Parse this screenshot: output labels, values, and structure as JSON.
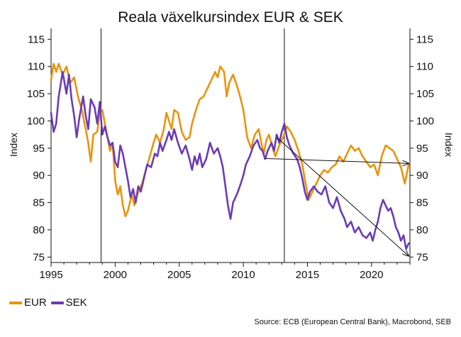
{
  "chart_data": {
    "type": "line",
    "title": "Reala växelkursindex EUR & SEK",
    "ylabel_left": "Index",
    "ylabel_right": "Index",
    "xlim": [
      1995,
      2023
    ],
    "ylim": [
      74,
      117
    ],
    "yticks": [
      75,
      80,
      85,
      90,
      95,
      100,
      105,
      110,
      115
    ],
    "xticks": [
      1995,
      2000,
      2005,
      2010,
      2015,
      2020
    ],
    "grid": false,
    "legend_position": "bottom-left",
    "vertical_lines": [
      1998.9,
      2013.2
    ],
    "trend_arrows": [
      {
        "from": [
          2012.6,
          97
        ],
        "to": [
          2022.9,
          75.2
        ]
      },
      {
        "from": [
          2011.7,
          93.1
        ],
        "to": [
          2022.9,
          92.2
        ]
      }
    ],
    "series": [
      {
        "name": "EUR",
        "color": "#E8940F",
        "points": [
          [
            1995.0,
            107.5
          ],
          [
            1995.2,
            110.5
          ],
          [
            1995.4,
            109.0
          ],
          [
            1995.6,
            110.5
          ],
          [
            1995.9,
            108.5
          ],
          [
            1996.2,
            110.0
          ],
          [
            1996.5,
            107.0
          ],
          [
            1996.8,
            108.0
          ],
          [
            1997.1,
            104.5
          ],
          [
            1997.4,
            102.0
          ],
          [
            1997.7,
            98.5
          ],
          [
            1997.9,
            96.0
          ],
          [
            1998.1,
            92.5
          ],
          [
            1998.3,
            97.5
          ],
          [
            1998.6,
            98.0
          ],
          [
            1998.8,
            101.5
          ],
          [
            1999.0,
            102.0
          ],
          [
            1999.2,
            99.5
          ],
          [
            1999.4,
            97.0
          ],
          [
            1999.6,
            94.5
          ],
          [
            1999.8,
            96.0
          ],
          [
            2000.0,
            89.0
          ],
          [
            2000.2,
            86.5
          ],
          [
            2000.4,
            88.0
          ],
          [
            2000.6,
            84.5
          ],
          [
            2000.8,
            82.5
          ],
          [
            2001.0,
            83.5
          ],
          [
            2001.3,
            86.5
          ],
          [
            2001.5,
            84.5
          ],
          [
            2001.8,
            87.0
          ],
          [
            2002.1,
            88.5
          ],
          [
            2002.4,
            91.0
          ],
          [
            2002.7,
            93.5
          ],
          [
            2003.0,
            96.0
          ],
          [
            2003.2,
            97.5
          ],
          [
            2003.5,
            96.0
          ],
          [
            2003.8,
            98.5
          ],
          [
            2004.0,
            101.5
          ],
          [
            2004.2,
            100.0
          ],
          [
            2004.4,
            98.5
          ],
          [
            2004.6,
            102.0
          ],
          [
            2004.9,
            101.5
          ],
          [
            2005.2,
            98.0
          ],
          [
            2005.5,
            96.5
          ],
          [
            2005.8,
            97.0
          ],
          [
            2006.0,
            99.5
          ],
          [
            2006.3,
            102.0
          ],
          [
            2006.6,
            104.0
          ],
          [
            2006.9,
            104.5
          ],
          [
            2007.2,
            106.0
          ],
          [
            2007.5,
            107.5
          ],
          [
            2007.8,
            109.0
          ],
          [
            2008.0,
            108.0
          ],
          [
            2008.2,
            110.0
          ],
          [
            2008.5,
            109.0
          ],
          [
            2008.7,
            104.5
          ],
          [
            2008.9,
            107.0
          ],
          [
            2009.2,
            108.5
          ],
          [
            2009.5,
            106.5
          ],
          [
            2009.8,
            104.0
          ],
          [
            2010.0,
            102.0
          ],
          [
            2010.3,
            97.0
          ],
          [
            2010.6,
            95.0
          ],
          [
            2010.9,
            97.5
          ],
          [
            2011.2,
            98.5
          ],
          [
            2011.4,
            96.0
          ],
          [
            2011.6,
            94.0
          ],
          [
            2011.8,
            96.5
          ],
          [
            2012.0,
            97.5
          ],
          [
            2012.3,
            95.0
          ],
          [
            2012.5,
            93.5
          ],
          [
            2012.8,
            95.5
          ],
          [
            2013.1,
            97.0
          ],
          [
            2013.4,
            99.0
          ],
          [
            2013.7,
            98.0
          ],
          [
            2014.0,
            96.5
          ],
          [
            2014.3,
            94.5
          ],
          [
            2014.6,
            92.0
          ],
          [
            2014.9,
            88.0
          ],
          [
            2015.1,
            85.5
          ],
          [
            2015.4,
            87.0
          ],
          [
            2015.7,
            88.5
          ],
          [
            2016.0,
            90.0
          ],
          [
            2016.3,
            91.0
          ],
          [
            2016.6,
            90.5
          ],
          [
            2016.9,
            91.5
          ],
          [
            2017.2,
            92.0
          ],
          [
            2017.5,
            93.5
          ],
          [
            2017.8,
            92.5
          ],
          [
            2018.1,
            94.0
          ],
          [
            2018.4,
            95.5
          ],
          [
            2018.7,
            94.5
          ],
          [
            2019.0,
            95.0
          ],
          [
            2019.3,
            93.5
          ],
          [
            2019.6,
            92.5
          ],
          [
            2019.9,
            91.5
          ],
          [
            2020.2,
            92.0
          ],
          [
            2020.5,
            90.0
          ],
          [
            2020.8,
            93.5
          ],
          [
            2021.1,
            95.5
          ],
          [
            2021.4,
            95.0
          ],
          [
            2021.7,
            94.5
          ],
          [
            2022.0,
            93.0
          ],
          [
            2022.3,
            91.5
          ],
          [
            2022.6,
            88.5
          ],
          [
            2022.9,
            92.0
          ]
        ]
      },
      {
        "name": "SEK",
        "color": "#6A3CB5",
        "points": [
          [
            1995.0,
            101.5
          ],
          [
            1995.2,
            98.0
          ],
          [
            1995.4,
            99.5
          ],
          [
            1995.6,
            104.5
          ],
          [
            1995.9,
            109.0
          ],
          [
            1996.2,
            105.0
          ],
          [
            1996.4,
            108.5
          ],
          [
            1996.6,
            104.0
          ],
          [
            1996.8,
            101.0
          ],
          [
            1997.0,
            97.0
          ],
          [
            1997.2,
            100.5
          ],
          [
            1997.5,
            104.5
          ],
          [
            1997.7,
            101.0
          ],
          [
            1997.9,
            98.5
          ],
          [
            1998.1,
            104.0
          ],
          [
            1998.4,
            102.5
          ],
          [
            1998.6,
            99.5
          ],
          [
            1998.8,
            103.5
          ],
          [
            1999.0,
            97.5
          ],
          [
            1999.2,
            99.0
          ],
          [
            1999.4,
            97.0
          ],
          [
            1999.6,
            95.5
          ],
          [
            1999.8,
            96.0
          ],
          [
            2000.0,
            92.5
          ],
          [
            2000.2,
            91.5
          ],
          [
            2000.4,
            95.5
          ],
          [
            2000.6,
            94.0
          ],
          [
            2000.8,
            91.5
          ],
          [
            2001.0,
            89.0
          ],
          [
            2001.2,
            86.0
          ],
          [
            2001.4,
            87.5
          ],
          [
            2001.6,
            85.0
          ],
          [
            2001.8,
            88.0
          ],
          [
            2002.0,
            87.0
          ],
          [
            2002.2,
            89.0
          ],
          [
            2002.5,
            92.0
          ],
          [
            2002.8,
            91.5
          ],
          [
            2003.1,
            94.0
          ],
          [
            2003.3,
            93.5
          ],
          [
            2003.5,
            96.0
          ],
          [
            2003.7,
            94.5
          ],
          [
            2004.0,
            96.5
          ],
          [
            2004.2,
            98.0
          ],
          [
            2004.4,
            96.5
          ],
          [
            2004.6,
            98.5
          ],
          [
            2004.9,
            96.0
          ],
          [
            2005.2,
            94.0
          ],
          [
            2005.5,
            95.5
          ],
          [
            2005.8,
            93.0
          ],
          [
            2006.0,
            91.0
          ],
          [
            2006.2,
            93.5
          ],
          [
            2006.4,
            92.0
          ],
          [
            2006.6,
            94.0
          ],
          [
            2006.8,
            91.5
          ],
          [
            2007.1,
            93.0
          ],
          [
            2007.4,
            96.0
          ],
          [
            2007.7,
            94.0
          ],
          [
            2008.0,
            95.0
          ],
          [
            2008.2,
            93.5
          ],
          [
            2008.4,
            91.5
          ],
          [
            2008.6,
            88.0
          ],
          [
            2008.8,
            84.5
          ],
          [
            2009.0,
            82.0
          ],
          [
            2009.2,
            85.0
          ],
          [
            2009.5,
            86.5
          ],
          [
            2009.8,
            88.5
          ],
          [
            2010.0,
            90.0
          ],
          [
            2010.2,
            92.0
          ],
          [
            2010.5,
            93.5
          ],
          [
            2010.8,
            95.5
          ],
          [
            2011.1,
            96.5
          ],
          [
            2011.3,
            95.0
          ],
          [
            2011.5,
            94.5
          ],
          [
            2011.7,
            93.0
          ],
          [
            2011.9,
            94.5
          ],
          [
            2012.2,
            96.0
          ],
          [
            2012.4,
            94.5
          ],
          [
            2012.6,
            97.5
          ],
          [
            2012.8,
            96.0
          ],
          [
            2013.0,
            98.0
          ],
          [
            2013.2,
            99.5
          ],
          [
            2013.4,
            97.0
          ],
          [
            2013.6,
            95.5
          ],
          [
            2013.9,
            94.0
          ],
          [
            2014.2,
            93.0
          ],
          [
            2014.4,
            91.5
          ],
          [
            2014.6,
            89.5
          ],
          [
            2014.8,
            87.0
          ],
          [
            2015.0,
            85.5
          ],
          [
            2015.2,
            87.0
          ],
          [
            2015.5,
            88.0
          ],
          [
            2015.8,
            87.0
          ],
          [
            2016.1,
            86.5
          ],
          [
            2016.4,
            88.0
          ],
          [
            2016.7,
            85.0
          ],
          [
            2017.0,
            84.0
          ],
          [
            2017.3,
            86.0
          ],
          [
            2017.6,
            83.5
          ],
          [
            2017.9,
            82.0
          ],
          [
            2018.1,
            80.5
          ],
          [
            2018.4,
            81.5
          ],
          [
            2018.7,
            79.5
          ],
          [
            2019.0,
            80.5
          ],
          [
            2019.3,
            79.0
          ],
          [
            2019.6,
            78.5
          ],
          [
            2019.9,
            79.5
          ],
          [
            2020.1,
            78.0
          ],
          [
            2020.3,
            80.0
          ],
          [
            2020.5,
            81.5
          ],
          [
            2020.7,
            84.0
          ],
          [
            2020.9,
            85.5
          ],
          [
            2021.1,
            84.5
          ],
          [
            2021.3,
            83.5
          ],
          [
            2021.5,
            84.0
          ],
          [
            2021.7,
            82.5
          ],
          [
            2021.9,
            80.5
          ],
          [
            2022.1,
            79.5
          ],
          [
            2022.3,
            78.0
          ],
          [
            2022.5,
            79.0
          ],
          [
            2022.7,
            76.5
          ],
          [
            2022.9,
            77.5
          ]
        ]
      }
    ]
  },
  "source": "Source: ECB (European Central Bank), Macrobond, SEB"
}
